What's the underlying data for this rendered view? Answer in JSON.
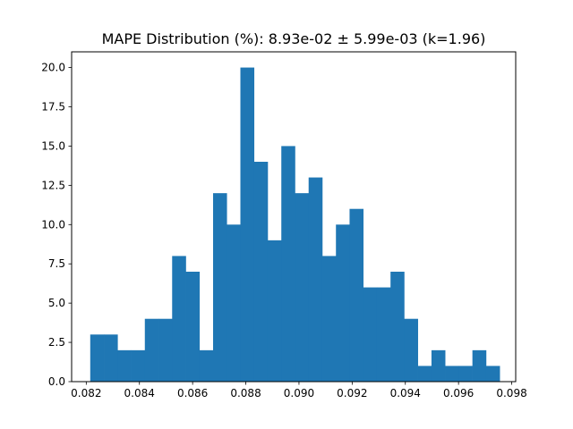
{
  "chart_data": {
    "type": "bar",
    "title": "MAPE Distribution (%): 8.93e-02 ± 5.99e-03 (k=1.96)",
    "xlabel": "",
    "ylabel": "",
    "xlim": [
      0.08145,
      0.09815
    ],
    "ylim": [
      0,
      21
    ],
    "bar_color": "#1f77b4",
    "grid": false,
    "bin_start": 0.08215,
    "bin_width": 0.0005133,
    "counts": [
      3,
      3,
      2,
      2,
      4,
      4,
      8,
      7,
      2,
      12,
      10,
      20,
      14,
      9,
      15,
      12,
      13,
      8,
      10,
      11,
      6,
      6,
      7,
      4,
      1,
      2,
      1,
      1,
      2,
      1
    ],
    "x_ticks": [
      0.082,
      0.084,
      0.086,
      0.088,
      0.09,
      0.092,
      0.094,
      0.096,
      0.098
    ],
    "x_tick_labels": [
      "0.082",
      "0.084",
      "0.086",
      "0.088",
      "0.090",
      "0.092",
      "0.094",
      "0.096",
      "0.098"
    ],
    "y_ticks": [
      0,
      2.5,
      5,
      7.5,
      10,
      12.5,
      15,
      17.5,
      20
    ],
    "y_tick_labels": [
      "0.0",
      "2.5",
      "5.0",
      "7.5",
      "10.0",
      "12.5",
      "15.0",
      "17.5",
      "20.0"
    ]
  }
}
